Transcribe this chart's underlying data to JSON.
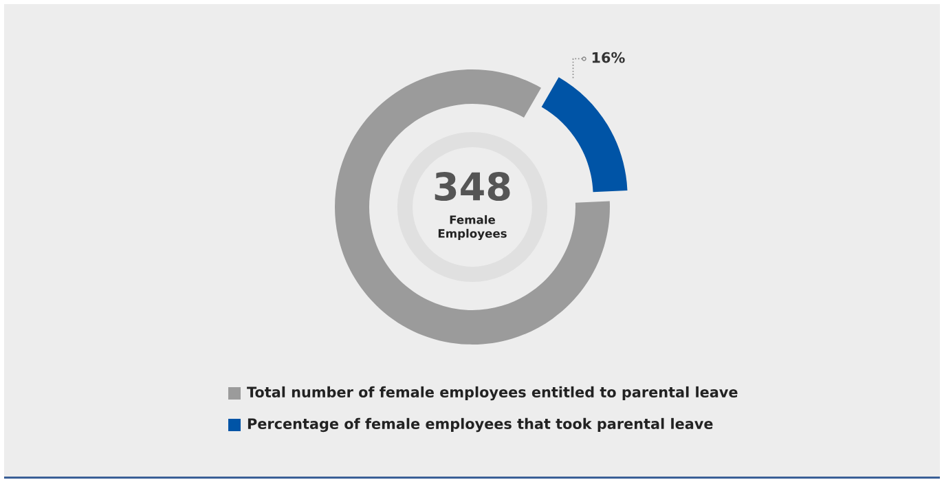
{
  "chart_data": {
    "type": "donut",
    "categories": [
      "Total number of female employees entitled to parental leave",
      "Percentage of female employees that took parental leave"
    ],
    "values": [
      84,
      16
    ],
    "colors": [
      "#9b9b9b",
      "#0054a6"
    ],
    "value_labels": [
      null,
      "16%"
    ],
    "annotations": [
      "348",
      "Female\nEmployees"
    ],
    "legend": "bottom"
  }
}
